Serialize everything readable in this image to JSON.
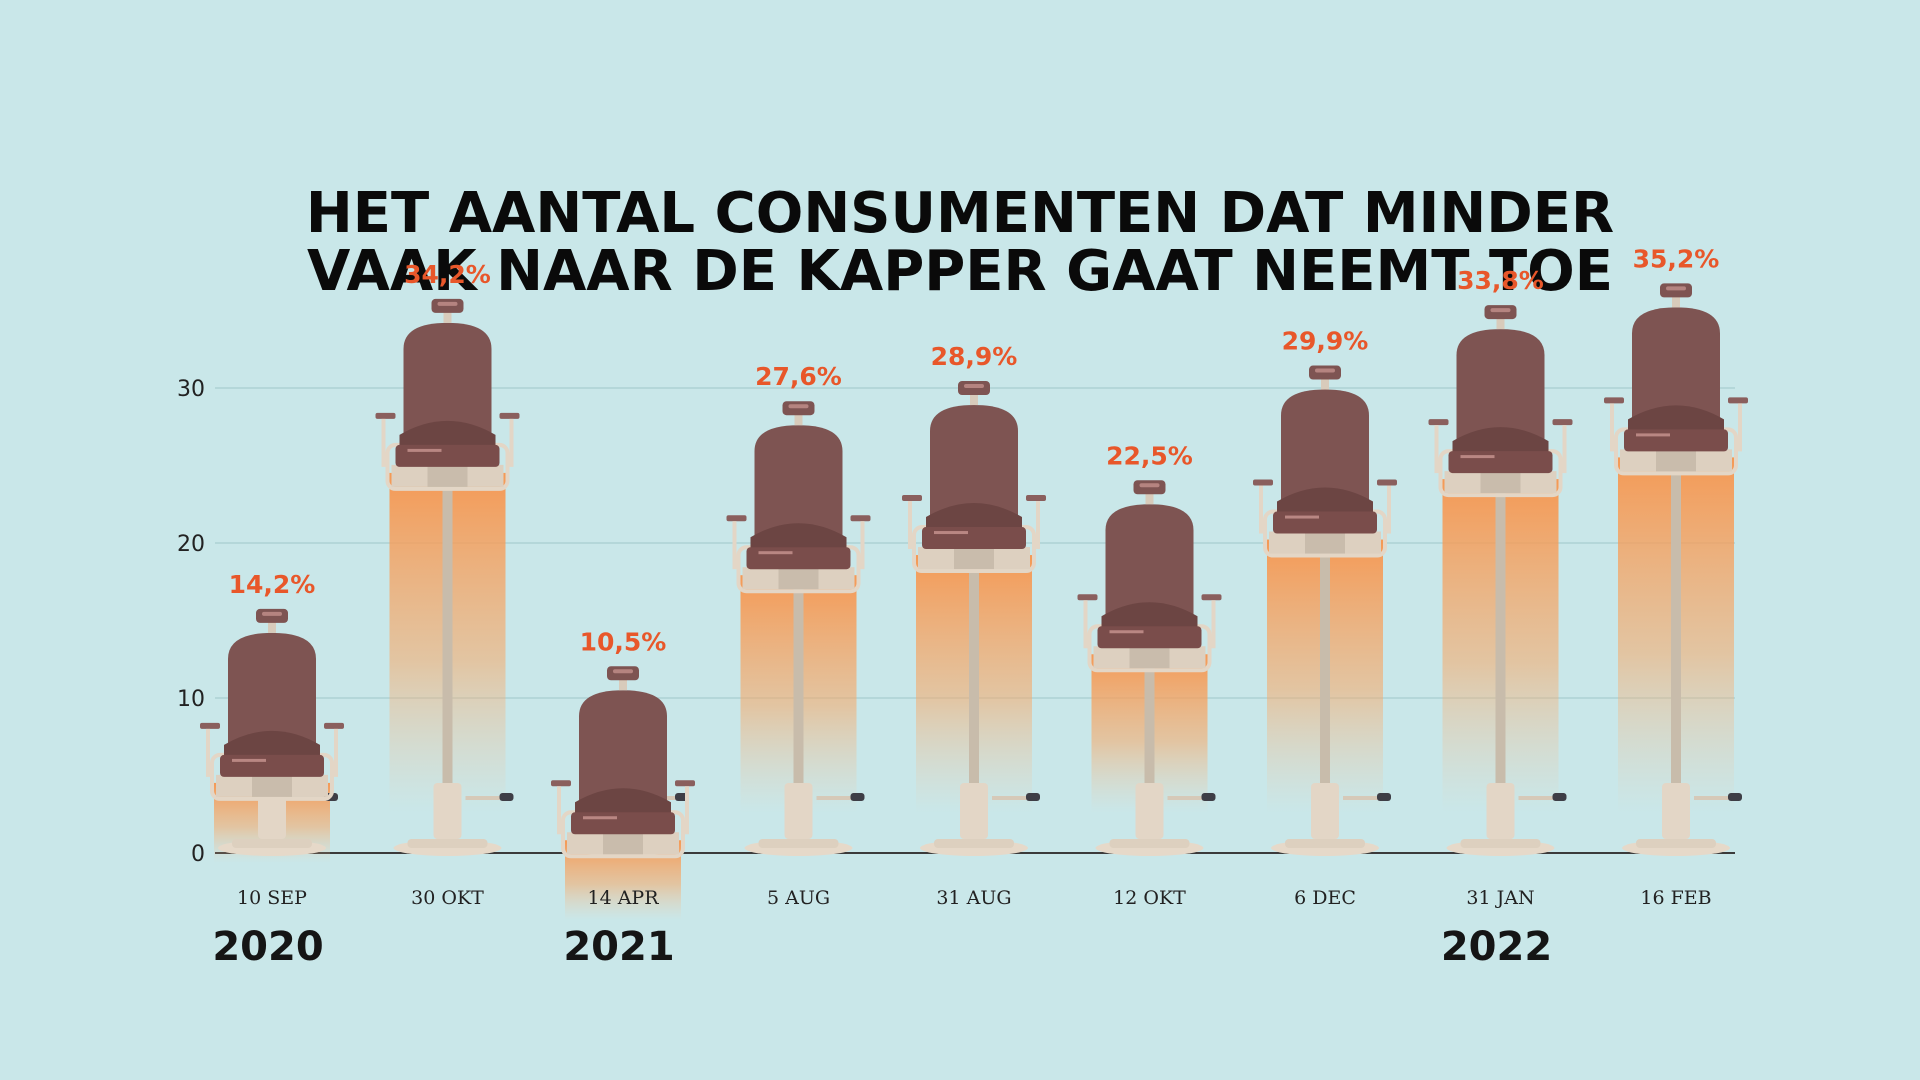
{
  "chart_data": {
    "type": "bar",
    "title_lines": [
      "HET AANTAL CONSUMENTEN DAT MINDER",
      "VAAK NAAR DE KAPPER GAAT NEEMT TOE"
    ],
    "categories": [
      "10 SEP",
      "30 OKT",
      "14 APR",
      "5 AUG",
      "31 AUG",
      "12 OKT",
      "6 DEC",
      "31 JAN",
      "16 FEB"
    ],
    "values": [
      14.2,
      34.2,
      10.5,
      27.6,
      28.9,
      22.5,
      29.9,
      33.8,
      35.2
    ],
    "value_labels": [
      "14,2%",
      "34,2%",
      "10,5%",
      "27,6%",
      "28,9%",
      "22,5%",
      "29,9%",
      "33,8%",
      "35,2%"
    ],
    "y_ticks": [
      0,
      10,
      20,
      30
    ],
    "ylim": [
      0,
      30
    ],
    "grid": true,
    "years": [
      {
        "label": "2020",
        "category_index": 0
      },
      {
        "label": "2021",
        "category_index": 2
      },
      {
        "label": "2022",
        "category_index": 7
      }
    ],
    "colors": {
      "background": "#c9e7e9",
      "value_label": "#e8572a",
      "glow": "#f7954d",
      "chair_leather": "#7e5452",
      "chair_frame": "#e3d6c6"
    }
  }
}
